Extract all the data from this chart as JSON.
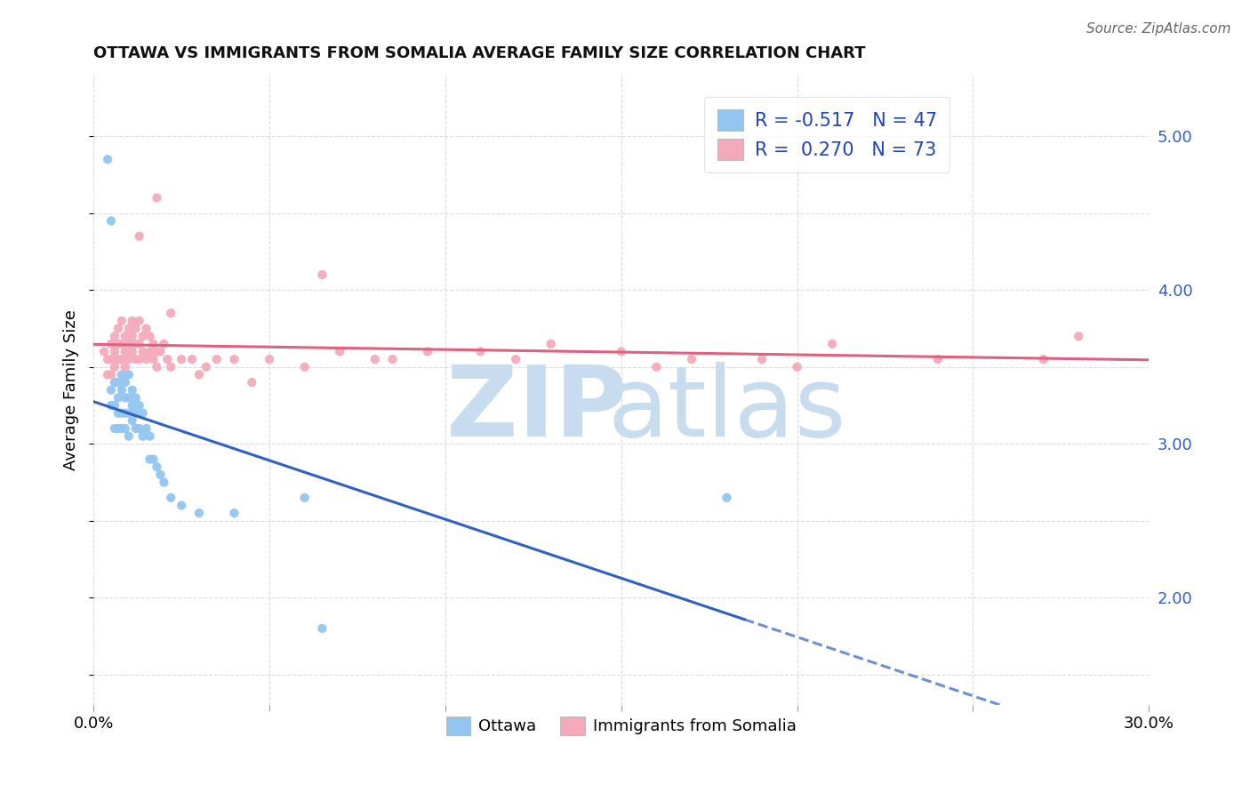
{
  "title": "OTTAWA VS IMMIGRANTS FROM SOMALIA AVERAGE FAMILY SIZE CORRELATION CHART",
  "source": "Source: ZipAtlas.com",
  "ylabel": "Average Family Size",
  "yticks_right": [
    2.0,
    3.0,
    4.0,
    5.0
  ],
  "xlim": [
    0.0,
    0.3
  ],
  "ylim": [
    1.3,
    5.4
  ],
  "ottawa_color": "#92C5F0",
  "somalia_color": "#F4AABB",
  "ottawa_line_color": "#3060C0",
  "somalia_line_color": "#E06080",
  "ottawa_R": -0.517,
  "ottawa_N": 47,
  "somalia_R": 0.27,
  "somalia_N": 73,
  "background_color": "#FFFFFF",
  "grid_color": "#CCCCCC",
  "ottawa_x": [
    0.004,
    0.005,
    0.005,
    0.006,
    0.006,
    0.006,
    0.007,
    0.007,
    0.007,
    0.007,
    0.008,
    0.008,
    0.008,
    0.008,
    0.009,
    0.009,
    0.009,
    0.009,
    0.01,
    0.01,
    0.01,
    0.01,
    0.011,
    0.011,
    0.011,
    0.012,
    0.012,
    0.012,
    0.013,
    0.013,
    0.014,
    0.014,
    0.015,
    0.016,
    0.016,
    0.017,
    0.018,
    0.019,
    0.02,
    0.022,
    0.025,
    0.03,
    0.04,
    0.06,
    0.065,
    0.18,
    0.005
  ],
  "ottawa_y": [
    4.85,
    3.35,
    3.25,
    3.4,
    3.25,
    3.1,
    3.4,
    3.3,
    3.2,
    3.1,
    3.45,
    3.35,
    3.2,
    3.1,
    3.4,
    3.3,
    3.2,
    3.1,
    3.45,
    3.3,
    3.2,
    3.05,
    3.35,
    3.25,
    3.15,
    3.3,
    3.2,
    3.1,
    3.25,
    3.1,
    3.2,
    3.05,
    3.1,
    3.05,
    2.9,
    2.9,
    2.85,
    2.8,
    2.75,
    2.65,
    2.6,
    2.55,
    2.55,
    2.65,
    1.8,
    2.65,
    4.45
  ],
  "somalia_x": [
    0.003,
    0.004,
    0.004,
    0.005,
    0.005,
    0.005,
    0.006,
    0.006,
    0.006,
    0.007,
    0.007,
    0.007,
    0.008,
    0.008,
    0.008,
    0.009,
    0.009,
    0.009,
    0.01,
    0.01,
    0.01,
    0.011,
    0.011,
    0.011,
    0.012,
    0.012,
    0.012,
    0.013,
    0.013,
    0.013,
    0.014,
    0.014,
    0.015,
    0.015,
    0.016,
    0.016,
    0.017,
    0.017,
    0.018,
    0.018,
    0.019,
    0.02,
    0.021,
    0.022,
    0.025,
    0.028,
    0.032,
    0.035,
    0.04,
    0.05,
    0.06,
    0.07,
    0.08,
    0.095,
    0.11,
    0.13,
    0.15,
    0.17,
    0.19,
    0.21,
    0.013,
    0.018,
    0.022,
    0.03,
    0.045,
    0.065,
    0.085,
    0.12,
    0.16,
    0.2,
    0.24,
    0.27,
    0.28
  ],
  "somalia_y": [
    3.6,
    3.55,
    3.45,
    3.65,
    3.55,
    3.45,
    3.7,
    3.6,
    3.5,
    3.75,
    3.65,
    3.55,
    3.8,
    3.65,
    3.55,
    3.7,
    3.6,
    3.5,
    3.75,
    3.65,
    3.55,
    3.8,
    3.7,
    3.6,
    3.75,
    3.65,
    3.55,
    3.8,
    3.65,
    3.55,
    3.7,
    3.6,
    3.75,
    3.55,
    3.7,
    3.6,
    3.65,
    3.55,
    3.6,
    3.5,
    3.6,
    3.65,
    3.55,
    3.5,
    3.55,
    3.55,
    3.5,
    3.55,
    3.55,
    3.55,
    3.5,
    3.6,
    3.55,
    3.6,
    3.6,
    3.65,
    3.6,
    3.55,
    3.55,
    3.65,
    4.35,
    4.6,
    3.85,
    3.45,
    3.4,
    4.1,
    3.55,
    3.55,
    3.5,
    3.5,
    3.55,
    3.55,
    3.7
  ],
  "ottawa_trend_x0": 0.0,
  "ottawa_trend_x_solid_end": 0.185,
  "ottawa_trend_x_dash_end": 0.3,
  "somalia_trend_x0": 0.0,
  "somalia_trend_x_end": 0.3
}
